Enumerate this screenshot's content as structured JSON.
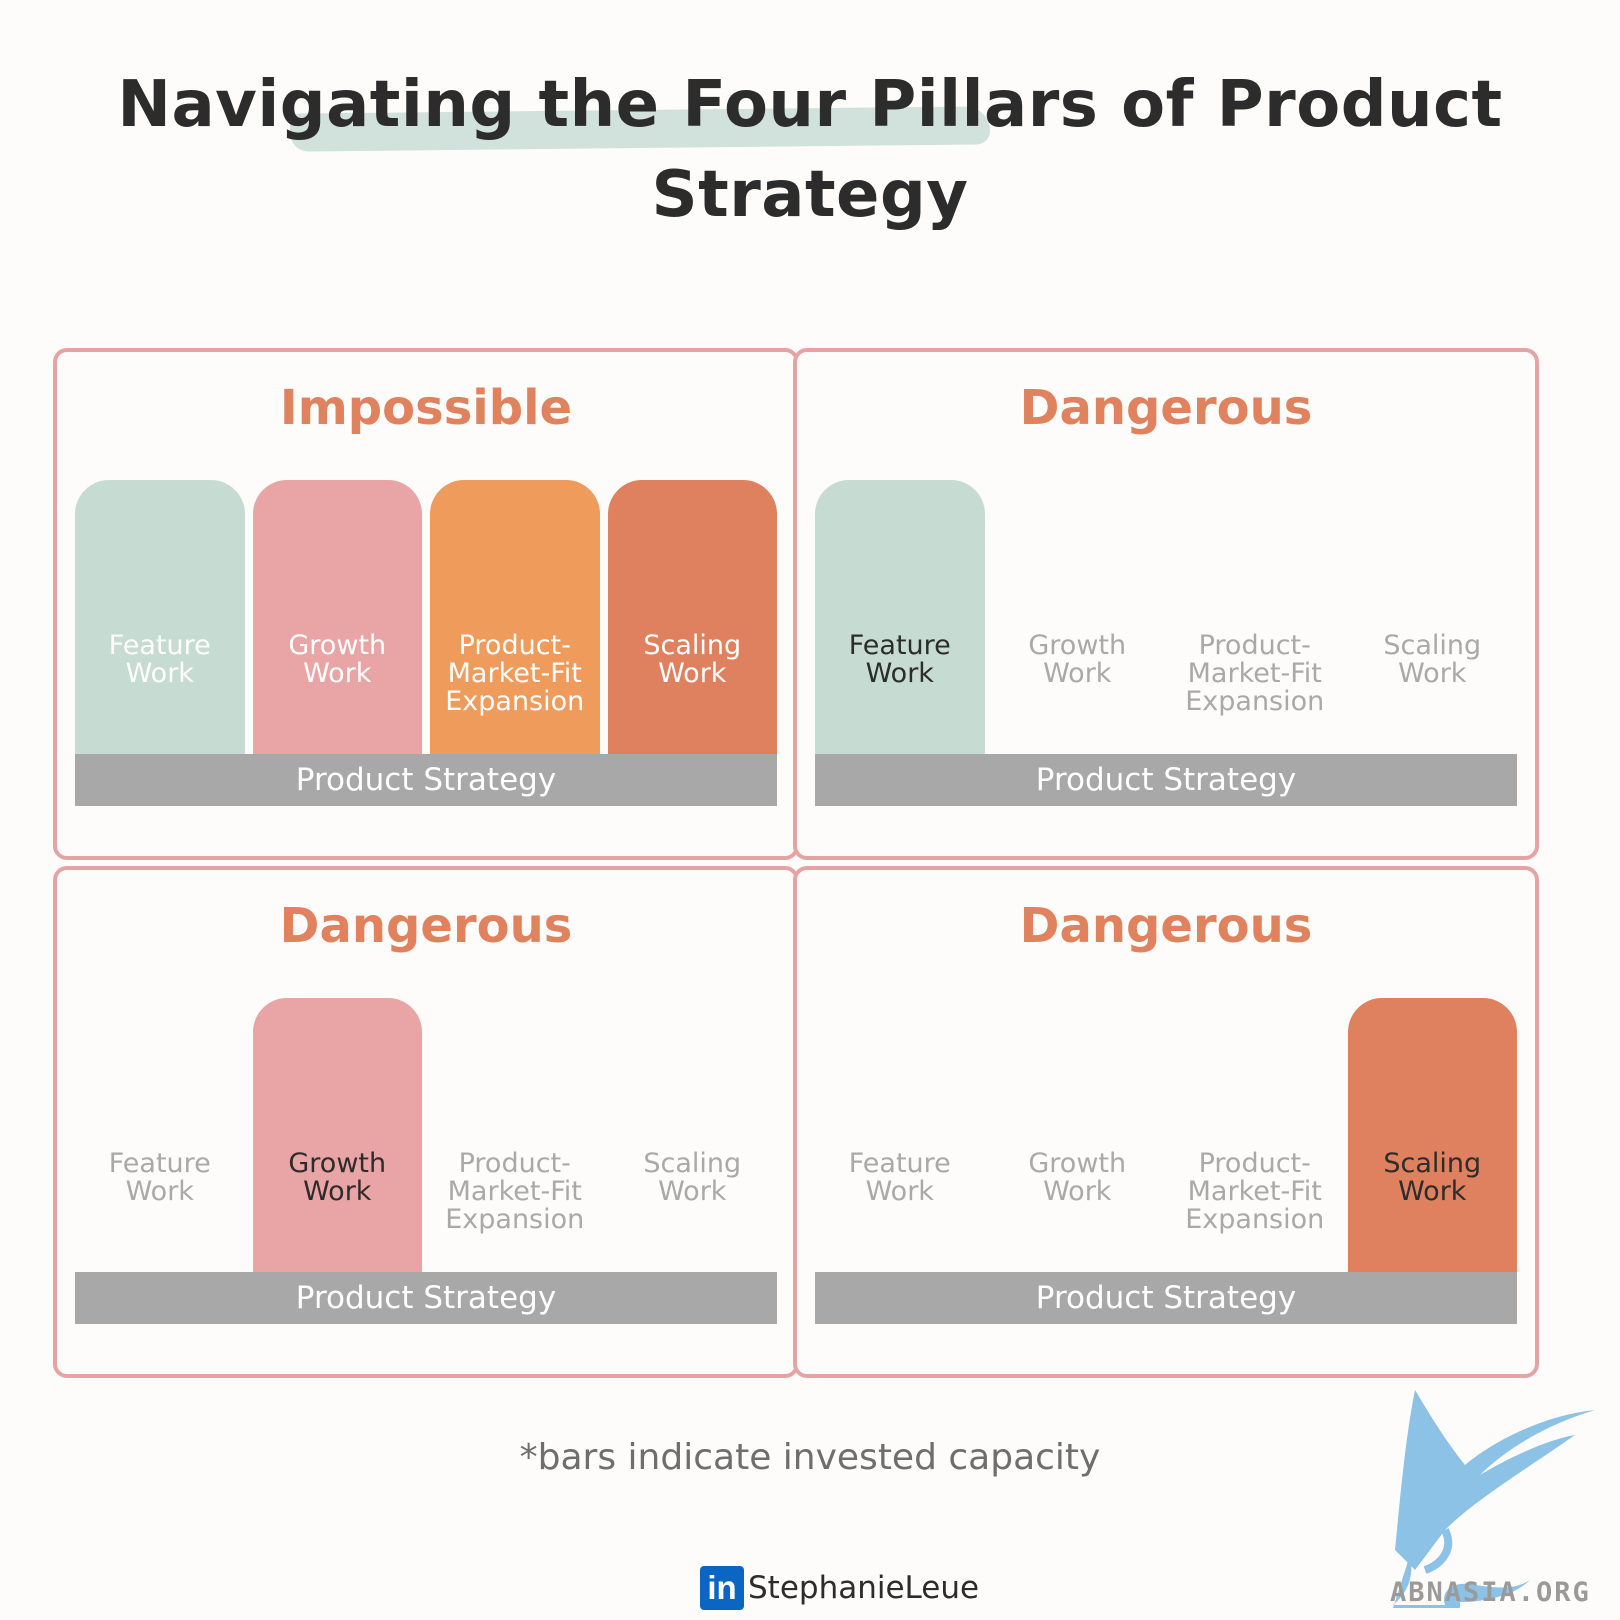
{
  "title": "Navigating the Four Pillars of Product Strategy",
  "base_label": "Product Strategy",
  "pillars": [
    {
      "line1": "Feature",
      "line2": "Work",
      "line3": ""
    },
    {
      "line1": "Growth",
      "line2": "Work",
      "line3": ""
    },
    {
      "line1": "Product-",
      "line2": "Market-Fit",
      "line3": "Expansion"
    },
    {
      "line1": "Scaling",
      "line2": "Work",
      "line3": ""
    }
  ],
  "colors": {
    "feature": "#c6dbd1",
    "growth": "#e9a5a5",
    "pmf": "#ef9b5c",
    "scaling": "#df815e",
    "panel_border": "#e6a3a3",
    "panel_title": "#e0825e",
    "base": "#a8a8a8"
  },
  "panels": [
    {
      "title": "Impossible",
      "invested": [
        1,
        1,
        1,
        1
      ]
    },
    {
      "title": "Dangerous",
      "invested": [
        1,
        0,
        0,
        0
      ]
    },
    {
      "title": "Dangerous",
      "invested": [
        0,
        1,
        0,
        0
      ]
    },
    {
      "title": "Dangerous",
      "invested": [
        0,
        0,
        0,
        1
      ]
    }
  ],
  "footnote": "*bars indicate invested capacity",
  "credit": {
    "icon": "in",
    "name": "StephanieLeue",
    "icon_name": "linkedin-icon"
  },
  "watermark": {
    "text": "ABNASIA.ORG",
    "icon_name": "griffin-logo-icon"
  }
}
